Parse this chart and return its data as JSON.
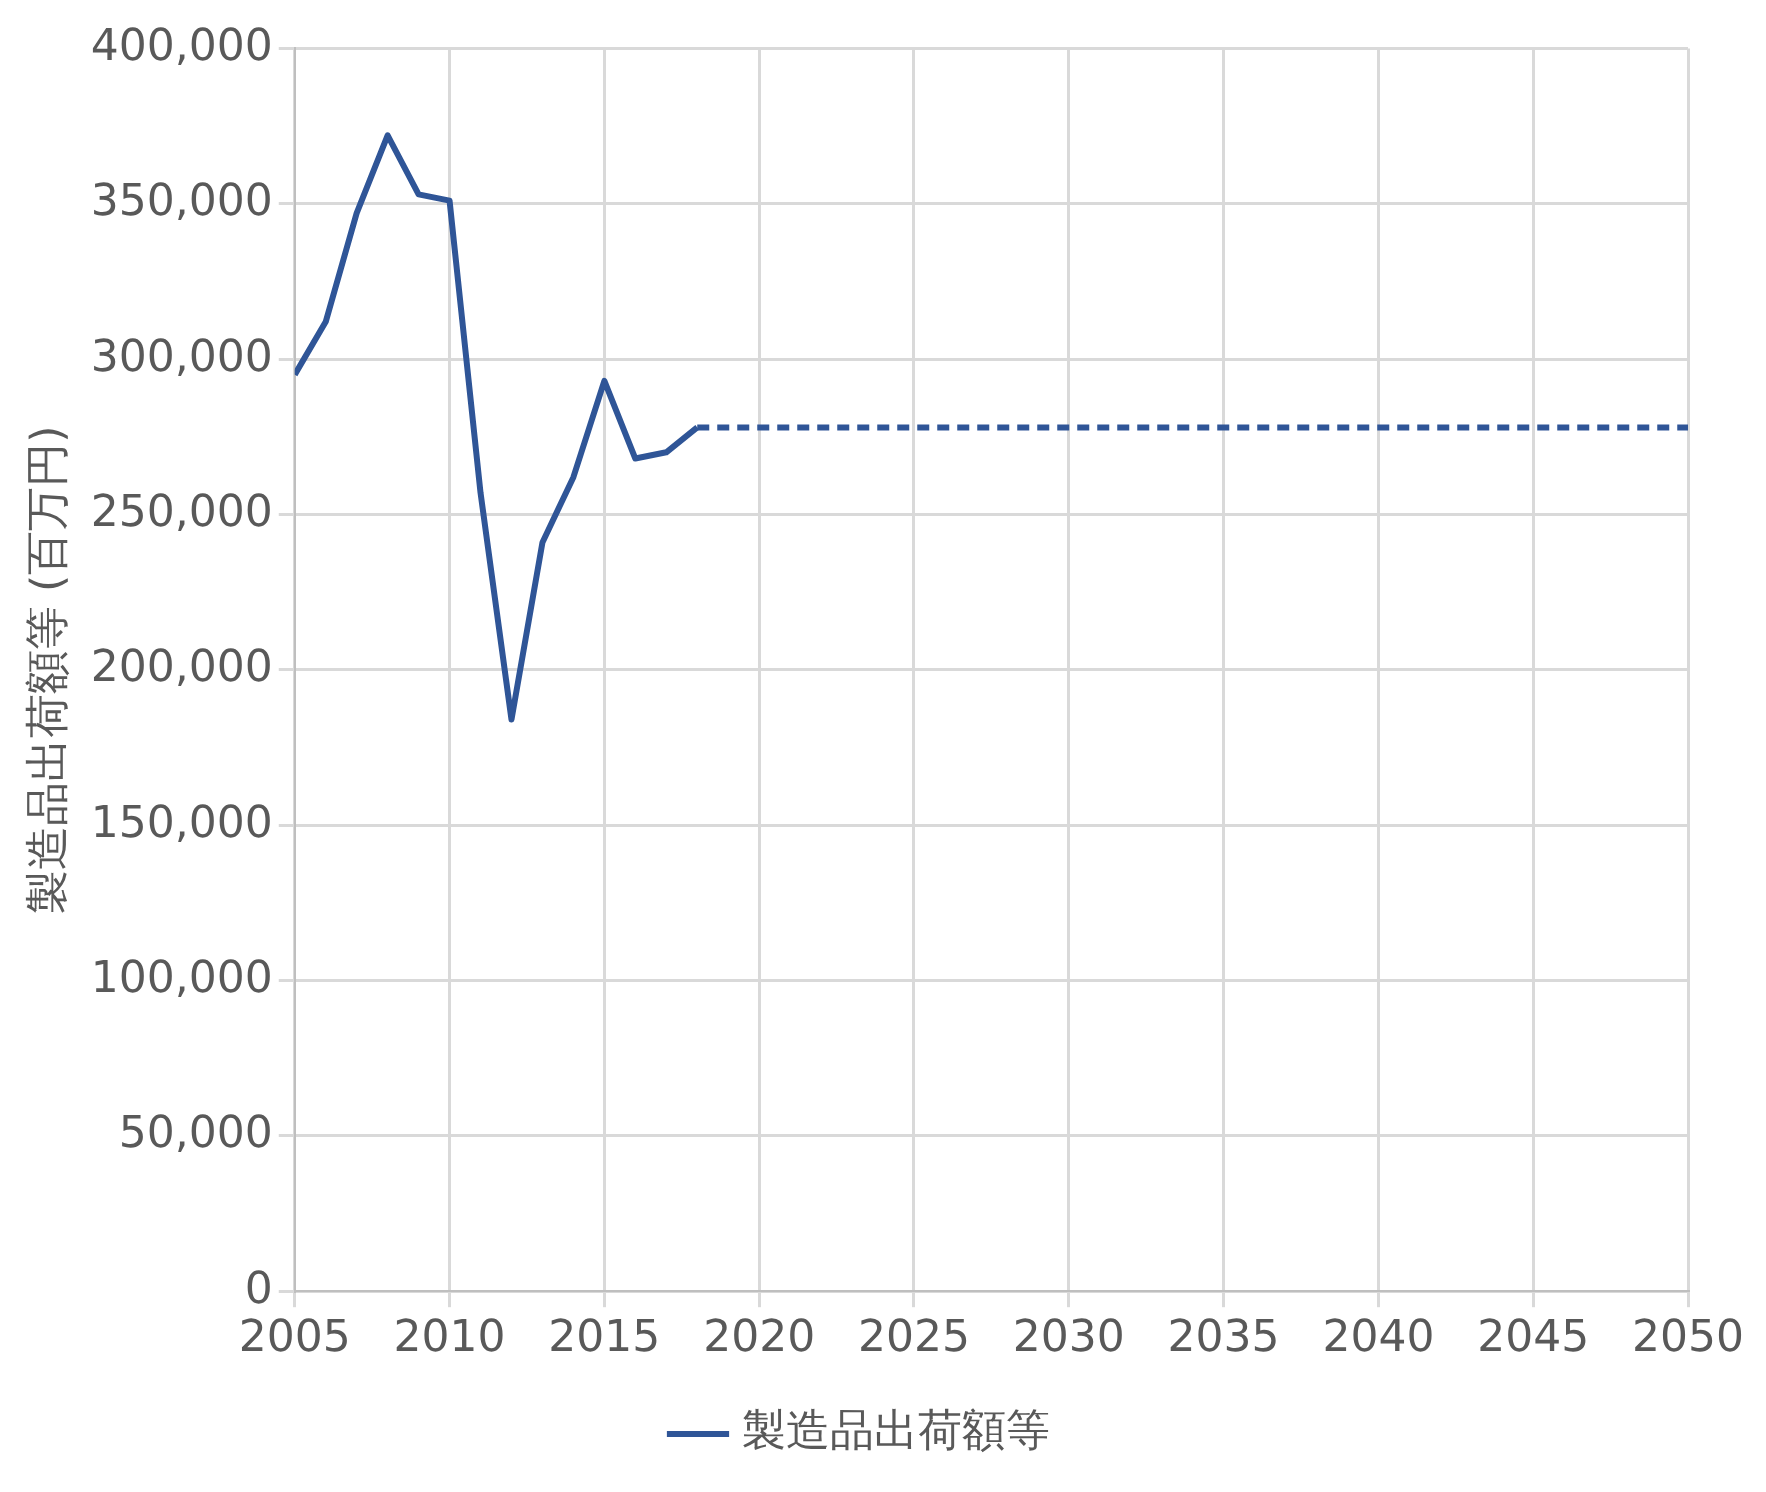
{
  "chart_data": {
    "type": "line",
    "ylabel": "製造品出荷額等 (百万円)",
    "xlim": [
      2005,
      2050
    ],
    "xticks": [
      2005,
      2010,
      2015,
      2020,
      2025,
      2030,
      2035,
      2040,
      2045,
      2050
    ],
    "ylim": [
      0,
      400000
    ],
    "yticks": [
      0,
      {
        "value": 50000,
        "label": "50,000"
      },
      {
        "value": 100000,
        "label": "100,000"
      },
      {
        "value": 150000,
        "label": "150,000"
      },
      {
        "value": 200000,
        "label": "200,000"
      },
      {
        "value": 250000,
        "label": "250,000"
      },
      {
        "value": 300000,
        "label": "300,000"
      },
      {
        "value": 350000,
        "label": "350,000"
      },
      {
        "value": 400000,
        "label": "400,000"
      }
    ],
    "grid": true,
    "legend": "bottom",
    "marker": "none",
    "series": [
      {
        "name": "製造品出荷額等",
        "color": "#2f5597",
        "line_style": "solid",
        "x": [
          2005,
          2006,
          2007,
          2008,
          2009,
          2010,
          2011,
          2012,
          2013,
          2014,
          2015,
          2016,
          2017,
          2018
        ],
        "values": [
          295000,
          312000,
          347000,
          372000,
          353000,
          351000,
          257000,
          184000,
          241000,
          262000,
          293000,
          268000,
          270000,
          278000
        ]
      },
      {
        "color": "#2f5597",
        "line_style": "dashed",
        "x": [
          2018,
          2050
        ],
        "values": [
          278000,
          278000
        ]
      }
    ]
  }
}
